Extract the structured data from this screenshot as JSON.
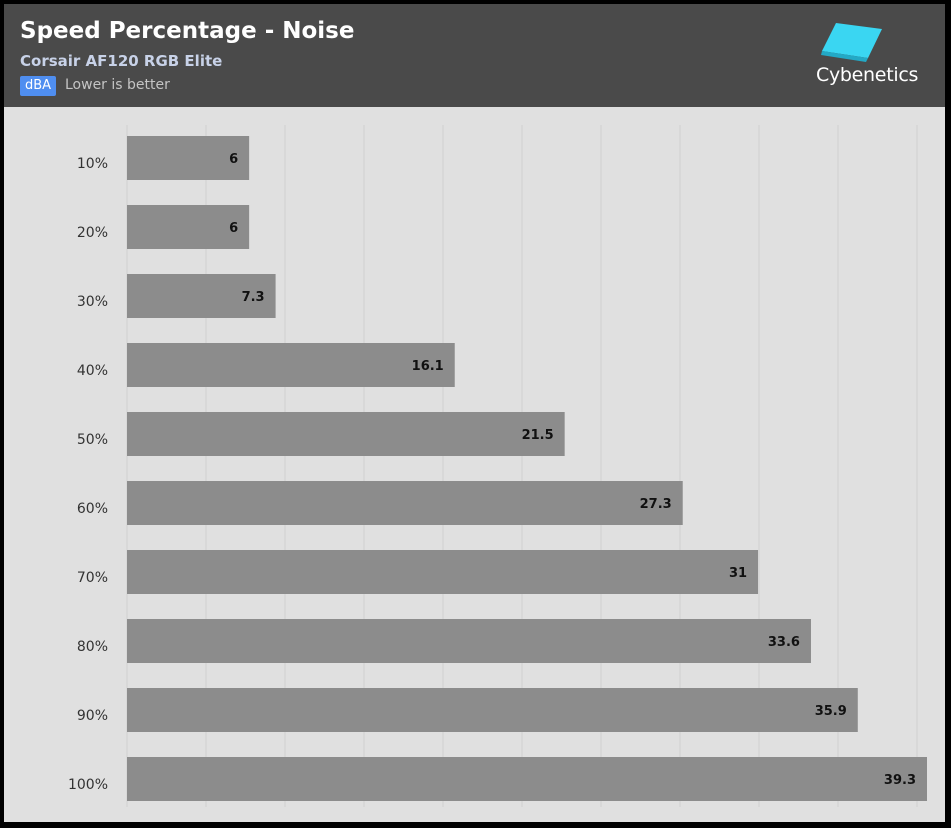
{
  "header": {
    "title": "Speed Percentage - Noise",
    "subtitle": "Corsair AF120 RGB Elite",
    "unit": "dBA",
    "note": "Lower is better"
  },
  "logo": {
    "text": "Cybenetics",
    "icon": "cybenetics-logo-icon",
    "color": "#3ad6f2"
  },
  "chart_data": {
    "type": "bar",
    "orientation": "horizontal",
    "title": "Speed Percentage - Noise",
    "subtitle": "Corsair AF120 RGB Elite",
    "unit": "dBA",
    "categories": [
      "10%",
      "20%",
      "30%",
      "40%",
      "50%",
      "60%",
      "70%",
      "80%",
      "90%",
      "100%"
    ],
    "values": [
      6,
      6,
      7.3,
      16.1,
      21.5,
      27.3,
      31,
      33.6,
      35.9,
      39.3
    ],
    "value_labels": [
      "6",
      "6",
      "7.3",
      "16.1",
      "21.5",
      "27.3",
      "31",
      "33.6",
      "35.9",
      "39.3"
    ],
    "xlim": [
      0,
      39.3
    ],
    "grid": true,
    "bar_color": "#8c8c8c",
    "background": "#e0e0e0",
    "grid_color": "#cfcfcf"
  }
}
